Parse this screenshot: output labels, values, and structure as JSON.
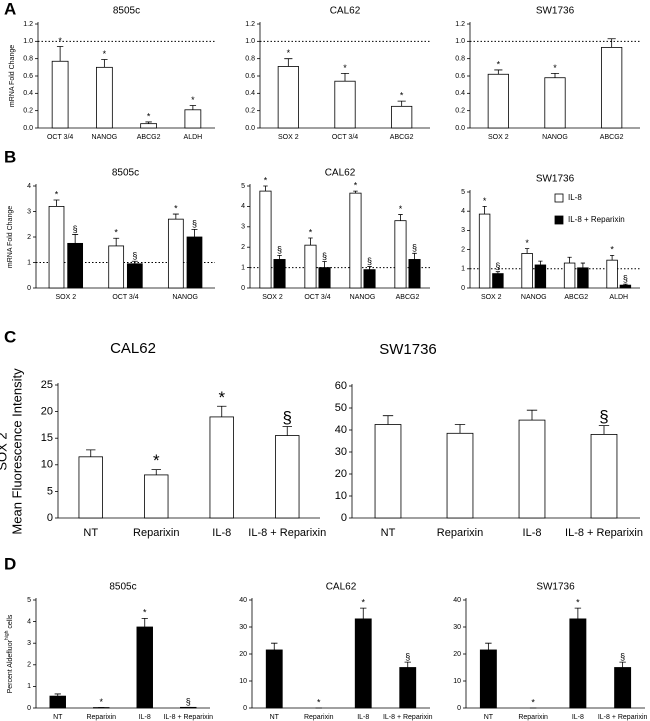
{
  "panel_labels": [
    "A",
    "B",
    "C",
    "D"
  ],
  "chart_data": [
    {
      "type": "bar",
      "title": "8505c",
      "y_label": "mRNA Fold Change",
      "categories": [
        "OCT 3/4",
        "NANOG",
        "ABCG2",
        "ALDH"
      ],
      "series": [
        {
          "color": "#ffffff",
          "values": [
            0.77,
            0.7,
            0.05,
            0.21
          ],
          "errors": [
            0.17,
            0.09,
            0.02,
            0.05
          ],
          "annotations": [
            "*",
            "*",
            "*",
            "*"
          ]
        }
      ],
      "ylim": [
        0,
        1.2
      ],
      "yticks": [
        {
          "value": 0,
          "label": "0.0"
        },
        {
          "value": 0.2,
          "label": "0.2"
        },
        {
          "value": 0.4,
          "label": "0.4"
        },
        {
          "value": 0.6,
          "label": "0.6"
        },
        {
          "value": 0.8,
          "label": "0.8"
        },
        {
          "value": 1,
          "label": "1.0"
        },
        {
          "value": 1.2,
          "label": "1.2"
        }
      ],
      "reference_line": 1
    },
    {
      "type": "bar",
      "title": "CAL62",
      "categories": [
        "SOX 2",
        "OCT 3/4",
        "ABCG2"
      ],
      "series": [
        {
          "color": "#ffffff",
          "values": [
            0.71,
            0.54,
            0.25
          ],
          "errors": [
            0.09,
            0.09,
            0.06
          ],
          "annotations": [
            "*",
            "*",
            "*"
          ]
        }
      ],
      "ylim": [
        0,
        1.2
      ],
      "yticks": [
        {
          "value": 0,
          "label": "0.0"
        },
        {
          "value": 0.2,
          "label": "0.2"
        },
        {
          "value": 0.4,
          "label": "0.4"
        },
        {
          "value": 0.6,
          "label": "0.6"
        },
        {
          "value": 0.8,
          "label": "0.8"
        },
        {
          "value": 1,
          "label": "1.0"
        },
        {
          "value": 1.2,
          "label": "1.2"
        }
      ],
      "reference_line": 1
    },
    {
      "type": "bar",
      "title": "SW1736",
      "categories": [
        "SOX 2",
        "NANOG",
        "ABCG2"
      ],
      "series": [
        {
          "color": "#ffffff",
          "values": [
            0.62,
            0.58,
            0.93
          ],
          "errors": [
            0.05,
            0.05,
            0.1
          ],
          "annotations": [
            "*",
            "*",
            null
          ]
        }
      ],
      "ylim": [
        0,
        1.2
      ],
      "yticks": [
        {
          "value": 0,
          "label": "0.0"
        },
        {
          "value": 0.2,
          "label": "0.2"
        },
        {
          "value": 0.4,
          "label": "0.4"
        },
        {
          "value": 0.6,
          "label": "0.6"
        },
        {
          "value": 0.8,
          "label": "0.8"
        },
        {
          "value": 1,
          "label": "1.0"
        },
        {
          "value": 1.2,
          "label": "1.2"
        }
      ],
      "reference_line": 1
    },
    {
      "type": "bar",
      "title": "8505c",
      "y_label": "mRNA Fold Change",
      "categories": [
        "SOX 2",
        "OCT 3/4",
        "NANOG"
      ],
      "series": [
        {
          "color": "#ffffff",
          "values": [
            3.2,
            1.65,
            2.7
          ],
          "errors": [
            0.25,
            0.3,
            0.2
          ],
          "annotations": [
            "*",
            "*",
            "*"
          ]
        },
        {
          "color": "#000000",
          "values": [
            1.75,
            0.95,
            2.0
          ],
          "errors": [
            0.35,
            0.1,
            0.3
          ],
          "annotations": [
            "§",
            "§",
            "§"
          ]
        }
      ],
      "ylim": [
        0,
        4
      ],
      "yticks": [
        0,
        1,
        2,
        3,
        4
      ],
      "reference_line": 1
    },
    {
      "type": "bar",
      "title": "CAL62",
      "categories": [
        "SOX 2",
        "OCT 3/4",
        "NANOG",
        "ABCG2"
      ],
      "series": [
        {
          "color": "#ffffff",
          "values": [
            4.75,
            2.1,
            4.65,
            3.3
          ],
          "errors": [
            0.25,
            0.35,
            0.1,
            0.3
          ],
          "annotations": [
            "*",
            "*",
            "*",
            "*"
          ]
        },
        {
          "color": "#000000",
          "values": [
            1.4,
            1.0,
            0.9,
            1.4
          ],
          "errors": [
            0.2,
            0.3,
            0.15,
            0.3
          ],
          "annotations": [
            "§",
            "§",
            "§",
            "§"
          ]
        }
      ],
      "ylim": [
        0,
        5
      ],
      "yticks": [
        0,
        1,
        2,
        3,
        4,
        5
      ],
      "reference_line": 1
    },
    {
      "type": "bar",
      "title": "SW1736",
      "categories": [
        "SOX 2",
        "NANOG",
        "ABCG2",
        "ALDH"
      ],
      "legend": "top-right",
      "series": [
        {
          "name": "IL-8",
          "color": "#ffffff",
          "values": [
            3.85,
            1.8,
            1.3,
            1.45
          ],
          "errors": [
            0.4,
            0.25,
            0.3,
            0.25
          ],
          "annotations": [
            "*",
            "*",
            null,
            "*"
          ]
        },
        {
          "name": "IL-8 + Reparixin",
          "color": "#000000",
          "values": [
            0.75,
            1.2,
            1.05,
            0.15
          ],
          "errors": [
            0.1,
            0.2,
            0.25,
            0.05
          ],
          "annotations": [
            "§",
            null,
            null,
            "§"
          ]
        }
      ],
      "ylim": [
        0,
        5
      ],
      "yticks": [
        0,
        1,
        2,
        3,
        4,
        5
      ],
      "reference_line": 1
    },
    {
      "type": "bar",
      "title": "CAL62",
      "y_label": [
        "SOX 2",
        "Mean Fluorescence Intensity"
      ],
      "categories": [
        "NT",
        "Reparixin",
        "IL-8",
        "IL-8 + Reparixin"
      ],
      "series": [
        {
          "color": "#ffffff",
          "values": [
            11.5,
            8.1,
            19,
            15.5
          ],
          "errors": [
            1.3,
            1,
            2,
            1.7
          ],
          "annotations": [
            null,
            "*",
            "*",
            "§"
          ]
        }
      ],
      "ylim": [
        0,
        25
      ],
      "yticks": [
        0,
        5,
        10,
        15,
        20,
        25
      ]
    },
    {
      "type": "bar",
      "title": "SW1736",
      "categories": [
        "NT",
        "Reparixin",
        "IL-8",
        "IL-8 + Reparixin"
      ],
      "series": [
        {
          "color": "#ffffff",
          "values": [
            42.5,
            38.5,
            44.5,
            38
          ],
          "errors": [
            4,
            4,
            4.5,
            4
          ],
          "annotations": [
            null,
            null,
            null,
            "§"
          ]
        }
      ],
      "ylim": [
        0,
        60
      ],
      "yticks": [
        0,
        10,
        20,
        30,
        40,
        50,
        60
      ]
    },
    {
      "type": "bar",
      "title": "8505c",
      "y_label": {
        "base": "Percent Aldefluor",
        "superscript": "high",
        "tail": "cells"
      },
      "categories": [
        "NT",
        "Reparixin",
        "IL-8",
        "IL-8 + Reparixin"
      ],
      "series": [
        {
          "color": "#000000",
          "values": [
            0.55,
            0.02,
            3.75,
            0.03
          ],
          "errors": [
            0.1,
            0,
            0.4,
            0
          ],
          "annotations": [
            null,
            "*",
            "*",
            "§"
          ]
        }
      ],
      "ylim": [
        0,
        5
      ],
      "yticks": [
        0,
        1,
        2,
        3,
        4,
        5
      ]
    },
    {
      "type": "bar",
      "title": "CAL62",
      "categories": [
        "NT",
        "Reparixin",
        "IL-8",
        "IL-8 + Reparixin"
      ],
      "series": [
        {
          "color": "#000000",
          "values": [
            21.5,
            0,
            33,
            15
          ],
          "errors": [
            2.5,
            0,
            4,
            2
          ],
          "annotations": [
            null,
            "*",
            "*",
            "§"
          ]
        }
      ],
      "ylim": [
        0,
        40
      ],
      "yticks": [
        0,
        10,
        20,
        30,
        40
      ]
    },
    {
      "type": "bar",
      "title": "SW1736",
      "categories": [
        "NT",
        "Reparixin",
        "IL-8",
        "IL-8 + Reparixin"
      ],
      "series": [
        {
          "color": "#000000",
          "values": [
            21.5,
            0,
            33,
            15
          ],
          "errors": [
            2.5,
            0,
            4,
            2
          ],
          "annotations": [
            null,
            "*",
            "*",
            "§"
          ]
        }
      ],
      "ylim": [
        0,
        40
      ],
      "yticks": [
        0,
        10,
        20,
        30,
        40
      ]
    }
  ]
}
